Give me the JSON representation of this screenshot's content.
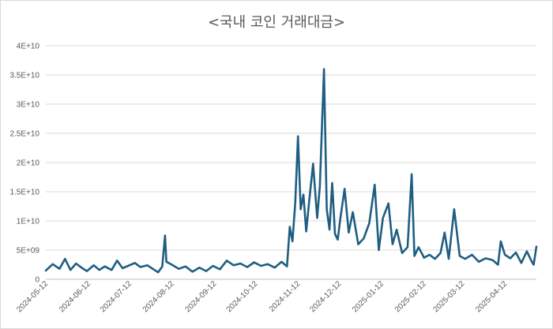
{
  "chart_data": {
    "type": "line",
    "title": "<국내 코인 거래대금>",
    "xlabel": "",
    "ylabel": "",
    "ylim": [
      0,
      40000000000
    ],
    "grid": "horizontal",
    "legend": "none",
    "y_ticks": [
      0,
      5000000000,
      10000000000,
      15000000000,
      20000000000,
      25000000000,
      30000000000,
      35000000000,
      40000000000
    ],
    "y_tick_labels": [
      "0",
      "5E+09",
      "1E+10",
      "1.5E+10",
      "2E+10",
      "2.5E+10",
      "3E+10",
      "3.5E+10",
      "4E+10"
    ],
    "x_range": [
      "2024-05-12",
      "2025-05-05"
    ],
    "x_ticks": [
      "2024-05-12",
      "2024-06-12",
      "2024-07-12",
      "2024-08-12",
      "2024-09-12",
      "2024-10-12",
      "2024-11-12",
      "2024-12-12",
      "2025-01-12",
      "2025-02-12",
      "2025-03-12",
      "2025-04-12"
    ],
    "colors": {
      "line": "#1f5e82"
    },
    "series": [
      {
        "x": [
          "2024-05-12",
          "2024-05-17",
          "2024-05-22",
          "2024-05-26",
          "2024-05-30",
          "2024-06-03",
          "2024-06-07",
          "2024-06-11",
          "2024-06-16",
          "2024-06-20",
          "2024-06-24",
          "2024-06-29",
          "2024-07-03",
          "2024-07-07",
          "2024-07-11",
          "2024-07-16",
          "2024-07-20",
          "2024-07-25",
          "2024-07-29",
          "2024-08-02",
          "2024-08-05",
          "2024-08-07",
          "2024-08-08",
          "2024-08-12",
          "2024-08-17",
          "2024-08-22",
          "2024-08-27",
          "2024-09-01",
          "2024-09-06",
          "2024-09-11",
          "2024-09-16",
          "2024-09-21",
          "2024-09-26",
          "2024-10-01",
          "2024-10-06",
          "2024-10-11",
          "2024-10-16",
          "2024-10-21",
          "2024-10-26",
          "2024-10-31",
          "2024-11-04",
          "2024-11-06",
          "2024-11-08",
          "2024-11-10",
          "2024-11-12",
          "2024-11-14",
          "2024-11-16",
          "2024-11-18",
          "2024-11-20",
          "2024-11-23",
          "2024-11-26",
          "2024-11-28",
          "2024-12-01",
          "2024-12-03",
          "2024-12-05",
          "2024-12-07",
          "2024-12-09",
          "2024-12-11",
          "2024-12-13",
          "2024-12-16",
          "2024-12-19",
          "2024-12-22",
          "2024-12-26",
          "2024-12-30",
          "2025-01-03",
          "2025-01-07",
          "2025-01-10",
          "2025-01-13",
          "2025-01-17",
          "2025-01-20",
          "2025-01-23",
          "2025-01-27",
          "2025-01-31",
          "2025-02-03",
          "2025-02-05",
          "2025-02-08",
          "2025-02-12",
          "2025-02-16",
          "2025-02-20",
          "2025-02-24",
          "2025-02-27",
          "2025-03-02",
          "2025-03-06",
          "2025-03-10",
          "2025-03-14",
          "2025-03-19",
          "2025-03-24",
          "2025-03-29",
          "2025-04-03",
          "2025-04-07",
          "2025-04-09",
          "2025-04-12",
          "2025-04-16",
          "2025-04-20",
          "2025-04-24",
          "2025-04-28",
          "2025-05-01",
          "2025-05-03",
          "2025-05-05"
        ],
        "values": [
          1500000000,
          2600000000,
          1800000000,
          3500000000,
          1600000000,
          2700000000,
          2000000000,
          1400000000,
          2400000000,
          1600000000,
          2200000000,
          1600000000,
          3200000000,
          1900000000,
          2300000000,
          2800000000,
          2100000000,
          2400000000,
          1800000000,
          1200000000,
          2200000000,
          7500000000,
          3000000000,
          2500000000,
          1800000000,
          2200000000,
          1300000000,
          2000000000,
          1400000000,
          2300000000,
          1700000000,
          3200000000,
          2400000000,
          2700000000,
          2100000000,
          2900000000,
          2300000000,
          2600000000,
          2000000000,
          3000000000,
          2200000000,
          9000000000,
          6500000000,
          13000000000,
          24500000000,
          12000000000,
          14500000000,
          8200000000,
          13000000000,
          19800000000,
          10500000000,
          16000000000,
          36000000000,
          12000000000,
          8500000000,
          16500000000,
          7800000000,
          6800000000,
          10500000000,
          15500000000,
          8000000000,
          11500000000,
          6000000000,
          7000000000,
          9600000000,
          16200000000,
          5000000000,
          10500000000,
          13000000000,
          6000000000,
          8500000000,
          4500000000,
          5500000000,
          18000000000,
          4000000000,
          5500000000,
          3700000000,
          4200000000,
          3500000000,
          4500000000,
          8000000000,
          3500000000,
          12000000000,
          4000000000,
          3500000000,
          4200000000,
          3000000000,
          3600000000,
          3300000000,
          2500000000,
          6500000000,
          4200000000,
          3600000000,
          4600000000,
          2800000000,
          4800000000,
          3300000000,
          2500000000,
          5600000000
        ]
      }
    ]
  }
}
